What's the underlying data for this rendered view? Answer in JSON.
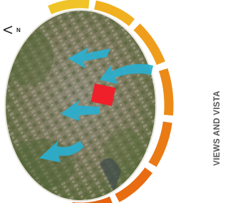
{
  "title": "VIEWS AND VISTA",
  "north_label": "N"
}
